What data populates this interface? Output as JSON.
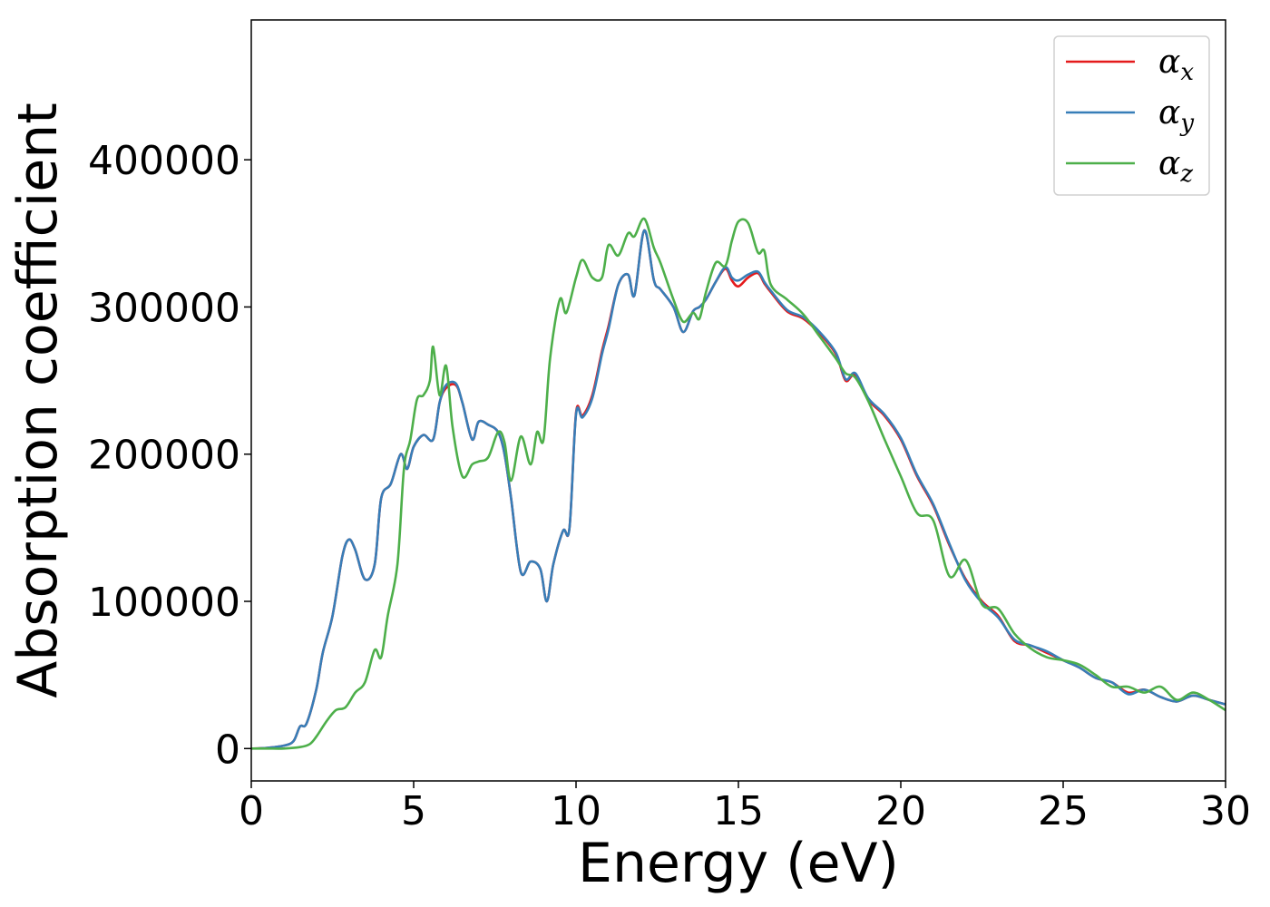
{
  "chart_data": {
    "type": "line",
    "title": "",
    "xlabel": "Energy (eV)",
    "ylabel": "Absorption coefficient",
    "xlim": [
      0,
      30
    ],
    "ylim": [
      -22000,
      495000
    ],
    "xticks": [
      0,
      5,
      10,
      15,
      20,
      25,
      30
    ],
    "xtick_labels": [
      "0",
      "5",
      "10",
      "15",
      "20",
      "25",
      "30"
    ],
    "yticks": [
      0,
      100000,
      200000,
      300000,
      400000
    ],
    "ytick_labels": [
      "0",
      "100000",
      "200000",
      "300000",
      "400000"
    ],
    "grid": false,
    "legend_position": "top-right",
    "series": [
      {
        "name": "α",
        "subscript": "x",
        "color": "#e41a1c",
        "x": [
          0,
          0.5,
          1.0,
          1.3,
          1.5,
          1.7,
          2.0,
          2.2,
          2.5,
          2.8,
          3.0,
          3.2,
          3.5,
          3.8,
          4.0,
          4.3,
          4.6,
          4.8,
          5.0,
          5.3,
          5.6,
          5.8,
          6.0,
          6.3,
          6.5,
          6.8,
          7.0,
          7.3,
          7.6,
          7.8,
          8.0,
          8.3,
          8.6,
          8.9,
          9.1,
          9.3,
          9.6,
          9.8,
          10.0,
          10.2,
          10.5,
          10.8,
          11.0,
          11.3,
          11.6,
          11.8,
          12.1,
          12.4,
          12.6,
          13.0,
          13.3,
          13.6,
          13.8,
          14.0,
          14.3,
          14.6,
          14.8,
          15.0,
          15.3,
          15.6,
          15.8,
          16.0,
          16.5,
          17.0,
          17.5,
          18.0,
          18.3,
          18.6,
          19.0,
          19.5,
          20.0,
          20.5,
          21.0,
          21.5,
          22.0,
          22.5,
          23.0,
          23.5,
          24.0,
          24.5,
          25.0,
          25.5,
          26.0,
          26.5,
          27.0,
          27.5,
          28.0,
          28.5,
          29.0,
          29.5,
          30.0
        ],
        "y": [
          0,
          500,
          2000,
          5000,
          15000,
          17000,
          40000,
          65000,
          90000,
          130000,
          142000,
          135000,
          115000,
          125000,
          170000,
          180000,
          200000,
          190000,
          205000,
          213000,
          210000,
          235000,
          245000,
          247000,
          235000,
          210000,
          222000,
          220000,
          215000,
          200000,
          170000,
          120000,
          127000,
          122000,
          100000,
          125000,
          148000,
          150000,
          228000,
          226000,
          240000,
          270000,
          287000,
          315000,
          322000,
          308000,
          352000,
          318000,
          312000,
          300000,
          283000,
          297000,
          300000,
          305000,
          317000,
          326000,
          318000,
          314000,
          320000,
          323000,
          316000,
          310000,
          297000,
          292000,
          282000,
          268000,
          250000,
          254000,
          237000,
          226000,
          210000,
          185000,
          165000,
          138000,
          115000,
          100000,
          90000,
          73000,
          70000,
          65000,
          60000,
          55000,
          48000,
          45000,
          38000,
          40000,
          35000,
          32000,
          36000,
          33000,
          30000
        ]
      },
      {
        "name": "α",
        "subscript": "y",
        "color": "#377eb8",
        "x": [
          0,
          0.5,
          1.0,
          1.3,
          1.5,
          1.7,
          2.0,
          2.2,
          2.5,
          2.8,
          3.0,
          3.2,
          3.5,
          3.8,
          4.0,
          4.3,
          4.6,
          4.8,
          5.0,
          5.3,
          5.6,
          5.8,
          6.0,
          6.3,
          6.5,
          6.8,
          7.0,
          7.3,
          7.6,
          7.8,
          8.0,
          8.3,
          8.6,
          8.9,
          9.1,
          9.3,
          9.6,
          9.8,
          10.0,
          10.2,
          10.5,
          10.8,
          11.0,
          11.3,
          11.6,
          11.8,
          12.1,
          12.4,
          12.6,
          13.0,
          13.3,
          13.6,
          13.8,
          14.0,
          14.3,
          14.6,
          14.8,
          15.0,
          15.3,
          15.6,
          15.8,
          16.0,
          16.5,
          17.0,
          17.5,
          18.0,
          18.3,
          18.6,
          19.0,
          19.5,
          20.0,
          20.5,
          21.0,
          21.5,
          22.0,
          22.5,
          23.0,
          23.5,
          24.0,
          24.5,
          25.0,
          25.5,
          26.0,
          26.5,
          27.0,
          27.5,
          28.0,
          28.5,
          29.0,
          29.5,
          30.0
        ],
        "y": [
          0,
          500,
          2000,
          5000,
          15000,
          17000,
          40000,
          65000,
          90000,
          130000,
          142000,
          135000,
          115000,
          125000,
          170000,
          180000,
          200000,
          190000,
          205000,
          213000,
          210000,
          235000,
          247000,
          248000,
          235000,
          210000,
          222000,
          220000,
          215000,
          200000,
          170000,
          120000,
          127000,
          122000,
          100000,
          125000,
          148000,
          150000,
          227000,
          225000,
          238000,
          268000,
          285000,
          315000,
          322000,
          308000,
          352000,
          318000,
          312000,
          300000,
          283000,
          297000,
          300000,
          305000,
          317000,
          327000,
          320000,
          318000,
          322000,
          324000,
          317000,
          311000,
          298000,
          293000,
          283000,
          269000,
          251000,
          255000,
          238000,
          227000,
          211000,
          186000,
          166000,
          139000,
          114000,
          99000,
          89000,
          74000,
          70000,
          66000,
          60000,
          55000,
          48000,
          45000,
          37000,
          40000,
          35000,
          32000,
          36000,
          33000,
          30000
        ]
      },
      {
        "name": "α",
        "subscript": "z",
        "color": "#4daf4a",
        "x": [
          0,
          0.5,
          1.0,
          1.5,
          1.8,
          2.0,
          2.3,
          2.6,
          2.9,
          3.2,
          3.5,
          3.8,
          4.0,
          4.2,
          4.5,
          4.7,
          4.9,
          5.1,
          5.3,
          5.5,
          5.6,
          5.8,
          6.0,
          6.2,
          6.5,
          6.8,
          7.0,
          7.3,
          7.6,
          7.8,
          8.0,
          8.3,
          8.6,
          8.8,
          9.0,
          9.2,
          9.5,
          9.7,
          10.0,
          10.2,
          10.5,
          10.8,
          11.0,
          11.3,
          11.6,
          11.8,
          12.1,
          12.4,
          12.6,
          13.0,
          13.3,
          13.6,
          13.8,
          14.0,
          14.3,
          14.6,
          14.8,
          15.0,
          15.3,
          15.6,
          15.8,
          16.0,
          16.5,
          17.0,
          17.5,
          18.0,
          18.3,
          18.6,
          19.0,
          19.5,
          20.0,
          20.5,
          21.0,
          21.5,
          22.0,
          22.5,
          23.0,
          23.5,
          24.0,
          24.5,
          25.0,
          25.5,
          26.0,
          26.5,
          27.0,
          27.5,
          28.0,
          28.5,
          29.0,
          29.5,
          30.0
        ],
        "y": [
          0,
          0,
          0,
          1000,
          3000,
          8000,
          18000,
          26000,
          28000,
          38000,
          45000,
          67000,
          62000,
          90000,
          125000,
          190000,
          210000,
          237000,
          240000,
          250000,
          273000,
          240000,
          260000,
          218000,
          185000,
          193000,
          195000,
          198000,
          215000,
          208000,
          182000,
          212000,
          193000,
          215000,
          210000,
          265000,
          305000,
          296000,
          320000,
          332000,
          320000,
          320000,
          342000,
          335000,
          350000,
          348000,
          360000,
          340000,
          330000,
          305000,
          290000,
          296000,
          292000,
          310000,
          330000,
          328000,
          345000,
          358000,
          357000,
          337000,
          338000,
          315000,
          305000,
          295000,
          280000,
          265000,
          255000,
          252000,
          236000,
          210000,
          185000,
          160000,
          155000,
          117000,
          128000,
          98000,
          95000,
          78000,
          68000,
          62000,
          60000,
          57000,
          50000,
          42000,
          42000,
          38000,
          42000,
          33000,
          38000,
          33000,
          26000
        ]
      }
    ]
  }
}
